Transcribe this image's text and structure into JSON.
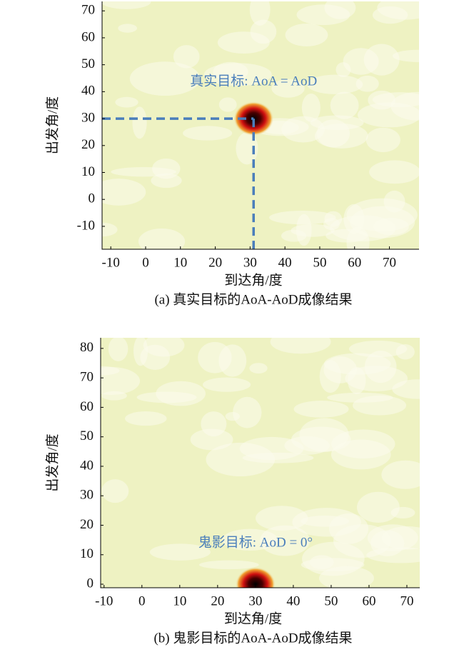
{
  "chart_data": [
    {
      "type": "heatmap",
      "xlabel": "到达角/度",
      "ylabel": "出发角/度",
      "caption": "(a) 真实目标的AoA-AoD成像结果",
      "annotation": "真实目标: AoA = AoD",
      "annotation_color": "#4a7ebb",
      "guides": true,
      "x": [
        31
      ],
      "y": [
        30
      ],
      "xlim": [
        -12.5,
        78.5
      ],
      "ylim": [
        -18.5,
        73.5
      ],
      "xticks": [
        -10,
        0,
        10,
        20,
        30,
        40,
        50,
        60,
        70
      ],
      "yticks": [
        -10,
        0,
        10,
        20,
        30,
        40,
        50,
        60,
        70
      ]
    },
    {
      "type": "heatmap",
      "xlabel": "到达角/度",
      "ylabel": "出发角/度",
      "caption": "(b) 鬼影目标的AoA-AoD成像结果",
      "annotation": "鬼影目标: AoD = 0°",
      "annotation_color": "#4a7ebb",
      "guides": false,
      "x": [
        30
      ],
      "y": [
        0
      ],
      "xlim": [
        -10.9,
        73.4
      ],
      "ylim": [
        -1.2,
        83.6
      ],
      "xticks": [
        -10,
        0,
        10,
        20,
        30,
        40,
        50,
        60,
        70
      ],
      "yticks": [
        0,
        10,
        20,
        30,
        40,
        50,
        60,
        70,
        80
      ]
    }
  ]
}
